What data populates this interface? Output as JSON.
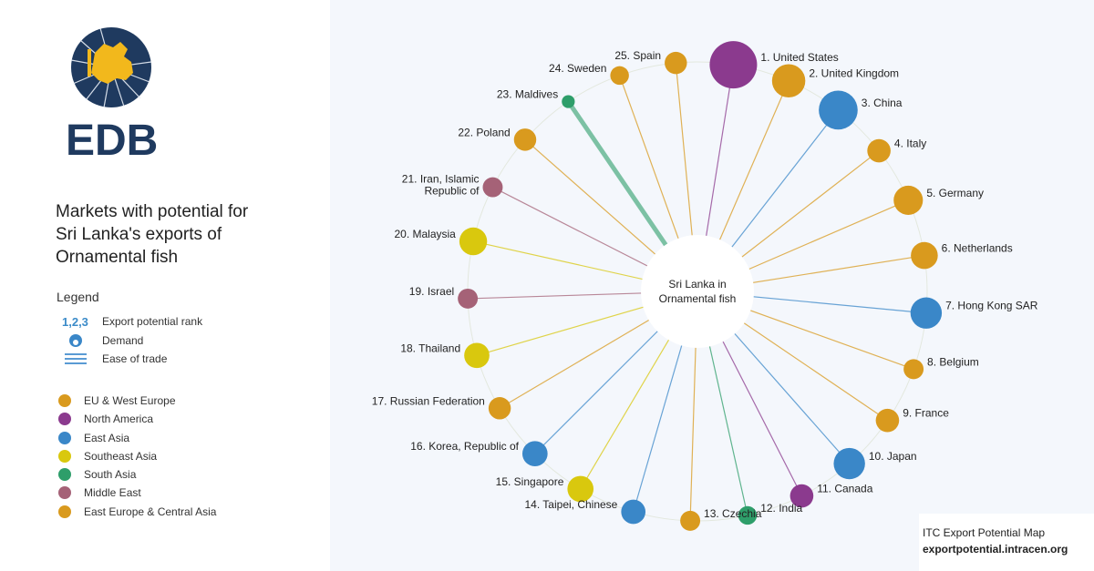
{
  "title_lines": [
    "Markets with potential for",
    "Sri Lanka's exports of",
    "Ornamental fish"
  ],
  "logo_text": "EDB",
  "legend": {
    "title": "Legend",
    "rank_symbol": "1,2,3",
    "items": [
      "Export potential rank",
      "Demand",
      "Ease of trade"
    ],
    "regions": [
      {
        "name": "EU & West Europe",
        "color": "#D99A1E"
      },
      {
        "name": "North America",
        "color": "#8B3A8E"
      },
      {
        "name": "East Asia",
        "color": "#3A87C8"
      },
      {
        "name": "Southeast Asia",
        "color": "#D9C80E"
      },
      {
        "name": "South Asia",
        "color": "#2E9E6A"
      },
      {
        "name": "Middle East",
        "color": "#A56277"
      },
      {
        "name": "East Europe & Central Asia",
        "color": "#D99A1E"
      }
    ]
  },
  "footer": {
    "source": "ITC Export Potential Map",
    "url": "exportpotential.intracen.org"
  },
  "chart_data": {
    "type": "radial",
    "center_label": [
      "Sri Lanka in",
      "Ornamental fish"
    ],
    "markets": [
      {
        "label": "1. United States",
        "rank": 1,
        "region": "North America",
        "color": "#8B3A8E",
        "demand": 1.0,
        "ease": 1
      },
      {
        "label": "2. United Kingdom",
        "rank": 2,
        "region": "EU & West Europe",
        "color": "#D99A1E",
        "demand": 0.42,
        "ease": 1
      },
      {
        "label": "3. China",
        "rank": 3,
        "region": "East Asia",
        "color": "#3A87C8",
        "demand": 0.62,
        "ease": 1
      },
      {
        "label": "4. Italy",
        "rank": 4,
        "region": "EU & West Europe",
        "color": "#D99A1E",
        "demand": 0.16,
        "ease": 1
      },
      {
        "label": "5. Germany",
        "rank": 5,
        "region": "EU & West Europe",
        "color": "#D99A1E",
        "demand": 0.3,
        "ease": 1
      },
      {
        "label": "6. Netherlands",
        "rank": 6,
        "region": "EU & West Europe",
        "color": "#D99A1E",
        "demand": 0.24,
        "ease": 1
      },
      {
        "label": "7. Hong Kong SAR",
        "rank": 7,
        "region": "East Asia",
        "color": "#3A87C8",
        "demand": 0.36,
        "ease": 1
      },
      {
        "label": "8. Belgium",
        "rank": 8,
        "region": "EU & West Europe",
        "color": "#D99A1E",
        "demand": 0.1,
        "ease": 1
      },
      {
        "label": "9. France",
        "rank": 9,
        "region": "EU & West Europe",
        "color": "#D99A1E",
        "demand": 0.16,
        "ease": 1
      },
      {
        "label": "10. Japan",
        "rank": 10,
        "region": "East Asia",
        "color": "#3A87C8",
        "demand": 0.36,
        "ease": 1
      },
      {
        "label": "11. Canada",
        "rank": 11,
        "region": "North America",
        "color": "#8B3A8E",
        "demand": 0.16,
        "ease": 1
      },
      {
        "label": "12. India",
        "rank": 12,
        "region": "South Asia",
        "color": "#2E9E6A",
        "demand": 0.08,
        "ease": 1
      },
      {
        "label": "13. Czechia",
        "rank": 13,
        "region": "East Europe & Central Asia",
        "color": "#D99A1E",
        "demand": 0.1,
        "ease": 1
      },
      {
        "label": "14. Taipei, Chinese",
        "rank": 14,
        "region": "East Asia",
        "color": "#3A87C8",
        "demand": 0.18,
        "ease": 1
      },
      {
        "label": "15. Singapore",
        "rank": 15,
        "region": "Southeast Asia",
        "color": "#D9C80E",
        "demand": 0.22,
        "ease": 1
      },
      {
        "label": "16. Korea, Republic of",
        "rank": 16,
        "region": "East Asia",
        "color": "#3A87C8",
        "demand": 0.2,
        "ease": 1
      },
      {
        "label": "17. Russian Federation",
        "rank": 17,
        "region": "East Europe & Central Asia",
        "color": "#D99A1E",
        "demand": 0.14,
        "ease": 1
      },
      {
        "label": "18. Thailand",
        "rank": 18,
        "region": "Southeast Asia",
        "color": "#D9C80E",
        "demand": 0.2,
        "ease": 1
      },
      {
        "label": "19. Israel",
        "rank": 19,
        "region": "Middle East",
        "color": "#A56277",
        "demand": 0.1,
        "ease": 1
      },
      {
        "label": "20. Malaysia",
        "rank": 20,
        "region": "Southeast Asia",
        "color": "#D9C80E",
        "demand": 0.26,
        "ease": 1
      },
      {
        "label": "21. Iran, Islamic Republic of",
        "rank": 21,
        "region": "Middle East",
        "color": "#A56277",
        "demand": 0.1,
        "ease": 1
      },
      {
        "label": "22. Poland",
        "rank": 22,
        "region": "EU & West Europe",
        "color": "#D99A1E",
        "demand": 0.14,
        "ease": 1
      },
      {
        "label": "23. Maldives",
        "rank": 23,
        "region": "South Asia",
        "color": "#2E9E6A",
        "demand": 0.02,
        "ease": 5
      },
      {
        "label": "24. Sweden",
        "rank": 24,
        "region": "EU & West Europe",
        "color": "#D99A1E",
        "demand": 0.08,
        "ease": 1
      },
      {
        "label": "25. Spain",
        "rank": 25,
        "region": "EU & West Europe",
        "color": "#D99A1E",
        "demand": 0.14,
        "ease": 1
      }
    ]
  }
}
